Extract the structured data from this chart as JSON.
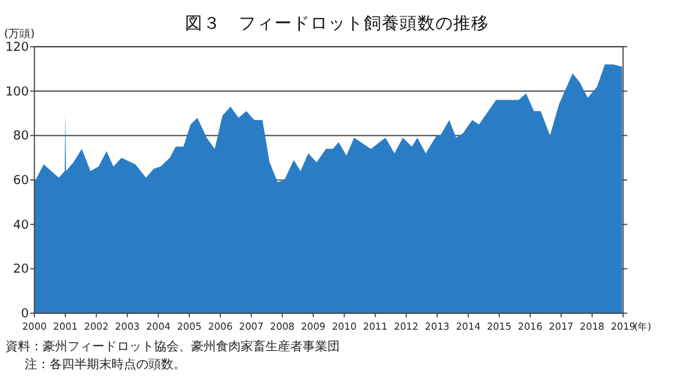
{
  "chart_data": {
    "type": "area",
    "title": "図３　フィードロット飼養頭数の推移",
    "ylabel": "(万頭)",
    "xlabel": "(年)",
    "color": "#2a7dc4",
    "x": [
      2000.0,
      2000.3,
      2000.79,
      2000.98,
      2001.0,
      2001.02,
      2001.26,
      2001.53,
      2001.81,
      2002.07,
      2002.33,
      2002.55,
      2002.81,
      2003.26,
      2003.6,
      2003.85,
      2004.07,
      2004.37,
      2004.56,
      2004.81,
      2005.04,
      2005.26,
      2005.56,
      2005.82,
      2006.07,
      2006.33,
      2006.59,
      2006.84,
      2007.1,
      2007.36,
      2007.59,
      2007.85,
      2008.07,
      2008.37,
      2008.59,
      2008.84,
      2009.11,
      2009.41,
      2009.63,
      2009.82,
      2010.07,
      2010.32,
      2010.86,
      2011.33,
      2011.62,
      2011.89,
      2012.18,
      2012.36,
      2012.63,
      2012.98,
      2013.1,
      2013.39,
      2013.61,
      2013.83,
      2014.13,
      2014.35,
      2014.65,
      2014.9,
      2015.16,
      2015.46,
      2015.63,
      2015.87,
      2016.12,
      2016.34,
      2016.64,
      2016.93,
      2017.37,
      2017.6,
      2017.86,
      2018.16,
      2018.41,
      2018.67,
      2018.97
    ],
    "values": [
      59,
      67,
      61,
      64,
      91,
      64,
      68,
      74,
      64,
      66,
      73,
      66,
      70,
      67,
      61,
      65,
      66,
      70,
      75,
      75,
      85,
      88,
      79,
      74,
      89,
      93,
      88,
      91,
      87,
      87,
      68,
      59,
      60,
      69,
      64,
      72,
      68,
      74,
      74,
      77,
      71,
      79,
      74,
      79,
      72,
      79,
      75,
      79,
      72,
      80,
      80,
      87,
      79,
      81,
      87,
      85,
      91,
      96,
      96,
      96,
      96,
      99,
      91,
      91,
      80,
      94,
      108,
      104,
      97,
      102,
      112,
      112,
      111
    ],
    "xlim": [
      2000,
      2019
    ],
    "ylim": [
      0,
      120
    ],
    "xticks": [
      2000,
      2001,
      2002,
      2003,
      2004,
      2005,
      2006,
      2007,
      2008,
      2009,
      2010,
      2011,
      2012,
      2013,
      2014,
      2015,
      2016,
      2017,
      2018,
      2019
    ],
    "yticks": [
      0,
      20,
      40,
      60,
      80,
      100,
      120
    ],
    "grid": "y",
    "annotations": [
      "資料：豪州フィードロット協会、豪州食肉家畜生産者事業団",
      "注：各四半期末時点の頭数。"
    ]
  }
}
